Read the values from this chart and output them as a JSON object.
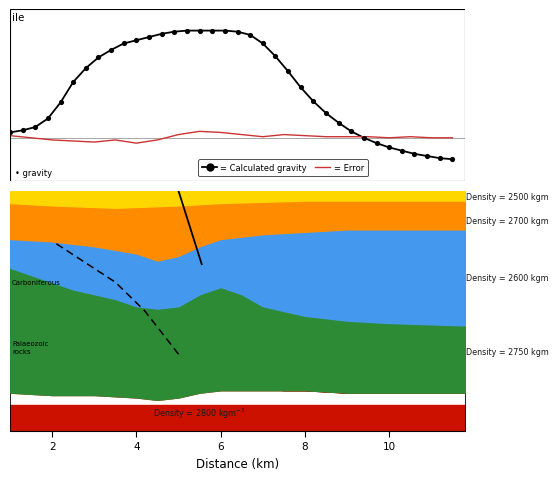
{
  "xlabel": "Distance (km)",
  "x_min": 1.0,
  "x_max": 11.8,
  "gravity_x": [
    1.0,
    1.3,
    1.6,
    1.9,
    2.2,
    2.5,
    2.8,
    3.1,
    3.4,
    3.7,
    4.0,
    4.3,
    4.6,
    4.9,
    5.2,
    5.5,
    5.8,
    6.1,
    6.4,
    6.7,
    7.0,
    7.3,
    7.6,
    7.9,
    8.2,
    8.5,
    8.8,
    9.1,
    9.4,
    9.7,
    10.0,
    10.3,
    10.6,
    10.9,
    11.2,
    11.5
  ],
  "gravity_y": [
    0.05,
    0.07,
    0.1,
    0.18,
    0.33,
    0.52,
    0.65,
    0.75,
    0.82,
    0.88,
    0.91,
    0.94,
    0.97,
    0.99,
    1.0,
    1.0,
    1.0,
    1.0,
    0.99,
    0.96,
    0.88,
    0.76,
    0.62,
    0.47,
    0.34,
    0.23,
    0.14,
    0.06,
    0.0,
    -0.05,
    -0.09,
    -0.12,
    -0.15,
    -0.17,
    -0.19,
    -0.2
  ],
  "error_x": [
    1.0,
    1.5,
    2.0,
    2.5,
    3.0,
    3.5,
    4.0,
    4.5,
    5.0,
    5.5,
    6.0,
    6.5,
    7.0,
    7.5,
    8.0,
    8.5,
    9.0,
    9.5,
    10.0,
    10.5,
    11.0,
    11.5
  ],
  "error_y": [
    0.02,
    0.0,
    -0.02,
    -0.03,
    -0.04,
    -0.02,
    -0.05,
    -0.02,
    0.03,
    0.06,
    0.05,
    0.03,
    0.01,
    0.03,
    0.02,
    0.01,
    0.01,
    0.01,
    0.0,
    0.01,
    0.0,
    0.0
  ],
  "col_yellow": "#FFD700",
  "col_orange": "#FF8C00",
  "col_blue": "#4499EE",
  "col_green": "#2E8B35",
  "col_red": "#CC1100",
  "col_black": "#000000",
  "col_darkred": "#AA0000",
  "density_2500_text": "Density = 2500 kgm",
  "density_2700_text": "Density = 2700 kgm",
  "density_2600_text": "Density = 2600 kgm",
  "density_2750_text": "Density = 2750 kgm",
  "density_2800_text": "Density = 2800 kgm",
  "label_carboniferous": "Carboniferous",
  "label_palaeozoic": "Palaeozoic\nrocks",
  "legend_obs": "gravity",
  "legend_calc": "= Calculated gravity",
  "legend_err": "= Error"
}
